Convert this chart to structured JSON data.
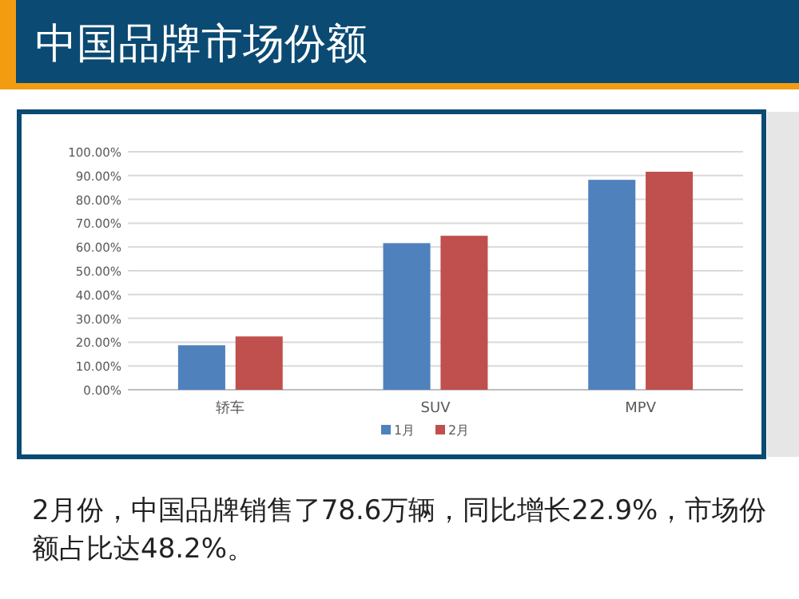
{
  "chart_data": {
    "type": "bar",
    "title": "中国品牌市场份额",
    "categories": [
      "轿车",
      "SUV",
      "MPV"
    ],
    "series": [
      {
        "name": "1月",
        "color": "#4f81bd",
        "values": [
          18.7,
          61.6,
          88.2
        ]
      },
      {
        "name": "2月",
        "color": "#c0504d",
        "values": [
          22.4,
          64.7,
          91.6
        ]
      }
    ],
    "ylim": [
      0,
      100
    ],
    "yticks": [
      {
        "value": 0,
        "label": "0.00%"
      },
      {
        "value": 10,
        "label": "10.00%"
      },
      {
        "value": 20,
        "label": "20.00%"
      },
      {
        "value": 30,
        "label": "30.00%"
      },
      {
        "value": 40,
        "label": "40.00%"
      },
      {
        "value": 50,
        "label": "50.00%"
      },
      {
        "value": 60,
        "label": "60.00%"
      },
      {
        "value": 70,
        "label": "70.00%"
      },
      {
        "value": 80,
        "label": "80.00%"
      },
      {
        "value": 90,
        "label": "90.00%"
      },
      {
        "value": 100,
        "label": "100.00%"
      }
    ],
    "grid": "y",
    "legend": "bottom",
    "annotations": [
      "2月份，中国品牌销售了78.6万辆，同比增长22.9%，市场份额占比达48.2%。"
    ]
  }
}
